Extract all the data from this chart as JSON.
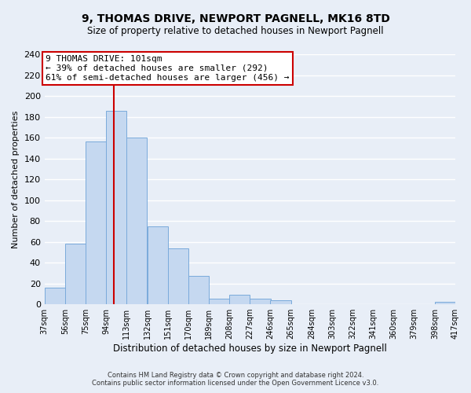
{
  "title": "9, THOMAS DRIVE, NEWPORT PAGNELL, MK16 8TD",
  "subtitle": "Size of property relative to detached houses in Newport Pagnell",
  "xlabel": "Distribution of detached houses by size in Newport Pagnell",
  "ylabel": "Number of detached properties",
  "bar_color": "#c5d8f0",
  "bar_edge_color": "#7aaadb",
  "bin_edges": [
    37,
    56,
    75,
    94,
    113,
    132,
    151,
    170,
    189,
    208,
    227,
    246,
    265,
    284,
    303,
    322,
    341,
    360,
    379,
    398,
    417
  ],
  "bar_heights": [
    16,
    58,
    156,
    186,
    160,
    75,
    54,
    27,
    5,
    9,
    5,
    4,
    0,
    0,
    0,
    0,
    0,
    0,
    0,
    2
  ],
  "tick_labels": [
    "37sqm",
    "56sqm",
    "75sqm",
    "94sqm",
    "113sqm",
    "132sqm",
    "151sqm",
    "170sqm",
    "189sqm",
    "208sqm",
    "227sqm",
    "246sqm",
    "265sqm",
    "284sqm",
    "303sqm",
    "322sqm",
    "341sqm",
    "360sqm",
    "379sqm",
    "398sqm",
    "417sqm"
  ],
  "vline_x": 101,
  "vline_color": "#cc0000",
  "ylim": [
    0,
    240
  ],
  "yticks": [
    0,
    20,
    40,
    60,
    80,
    100,
    120,
    140,
    160,
    180,
    200,
    220,
    240
  ],
  "annotation_line1": "9 THOMAS DRIVE: 101sqm",
  "annotation_line2": "← 39% of detached houses are smaller (292)",
  "annotation_line3": "61% of semi-detached houses are larger (456) →",
  "annotation_box_color": "#ffffff",
  "annotation_box_edge": "#cc0000",
  "footer_line1": "Contains HM Land Registry data © Crown copyright and database right 2024.",
  "footer_line2": "Contains public sector information licensed under the Open Government Licence v3.0.",
  "background_color": "#e8eef7",
  "grid_color": "#ffffff",
  "title_fontsize": 10,
  "subtitle_fontsize": 8.5,
  "xlabel_fontsize": 8.5,
  "ylabel_fontsize": 8,
  "tick_fontsize": 7,
  "ytick_fontsize": 8
}
